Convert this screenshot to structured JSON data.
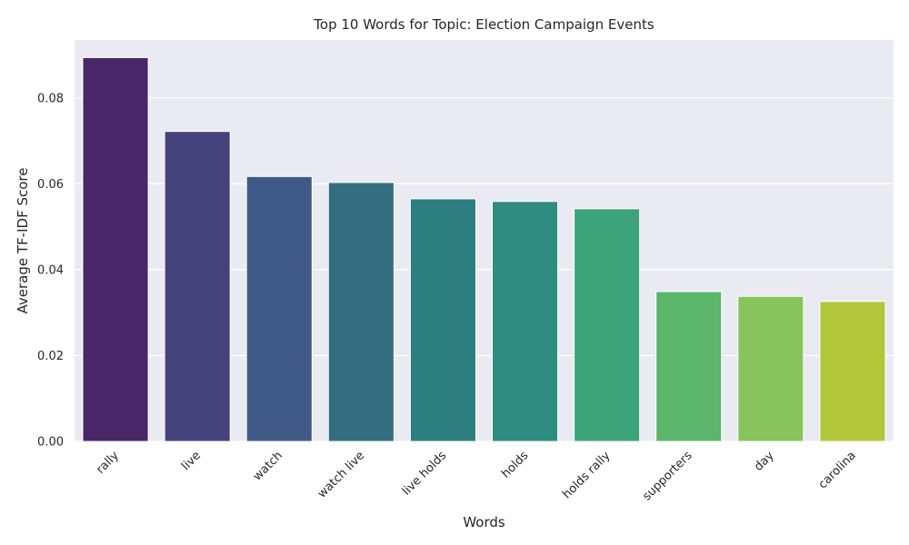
{
  "chart_data": {
    "type": "bar",
    "title": "Top 10 Words for Topic: Election Campaign Events",
    "xlabel": "Words",
    "ylabel": "Average TF-IDF Score",
    "categories": [
      "rally",
      "live",
      "watch",
      "watch live",
      "live holds",
      "holds",
      "holds rally",
      "supporters",
      "day",
      "carolina"
    ],
    "values": [
      0.0894,
      0.0722,
      0.0617,
      0.0603,
      0.0565,
      0.0559,
      0.0542,
      0.0349,
      0.0338,
      0.0326
    ],
    "ylim": [
      0,
      0.0935
    ],
    "yticks": [
      0.0,
      0.02,
      0.04,
      0.06,
      0.08
    ],
    "ytick_labels": [
      "0.00",
      "0.02",
      "0.04",
      "0.06",
      "0.08"
    ],
    "grid": true,
    "x_tick_rotation": "45deg",
    "colors": [
      "#482667",
      "#45437c",
      "#3f5a87",
      "#346c80",
      "#2c7e7f",
      "#2f8c7e",
      "#3da37a",
      "#5bb56b",
      "#88c45c",
      "#b2c83a"
    ],
    "background": "#eaeaf2"
  }
}
